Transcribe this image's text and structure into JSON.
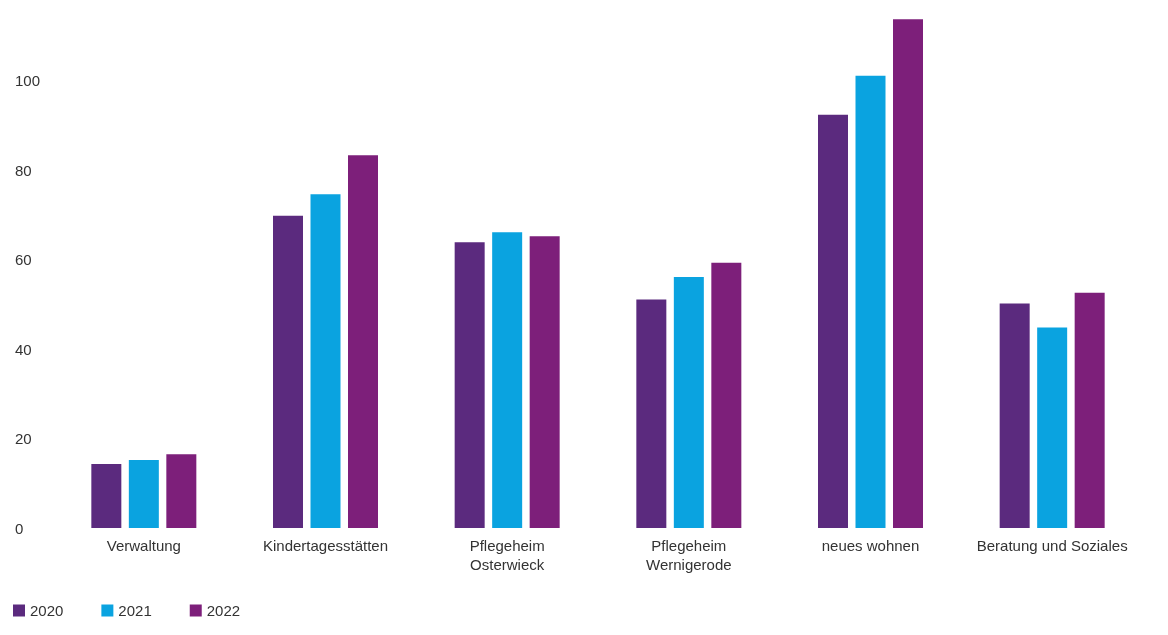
{
  "chart_data": {
    "type": "bar",
    "categories": [
      "Verwaltung",
      "Kindertagesstätten",
      "Pflegeheim\nOsterwieck",
      "Pflegeheim\nWernigerode",
      "neues wohnen",
      "Beratung und Soziales"
    ],
    "series": [
      {
        "name": "2020",
        "color": "#5b2a7e",
        "values": [
          14.3,
          69.8,
          63.9,
          51.1,
          92.4,
          50.2
        ]
      },
      {
        "name": "2021",
        "color": "#0aa3e0",
        "values": [
          15.2,
          74.6,
          66.1,
          56.1,
          101.1,
          44.8
        ]
      },
      {
        "name": "2022",
        "color": "#7d1f7a",
        "values": [
          16.5,
          83.3,
          65.2,
          59.3,
          113.7,
          52.6
        ]
      }
    ],
    "ylim": [
      0,
      114
    ],
    "yticks": [
      0,
      20,
      40,
      60,
      80,
      100
    ],
    "grid": false,
    "legend": "bottom left"
  }
}
